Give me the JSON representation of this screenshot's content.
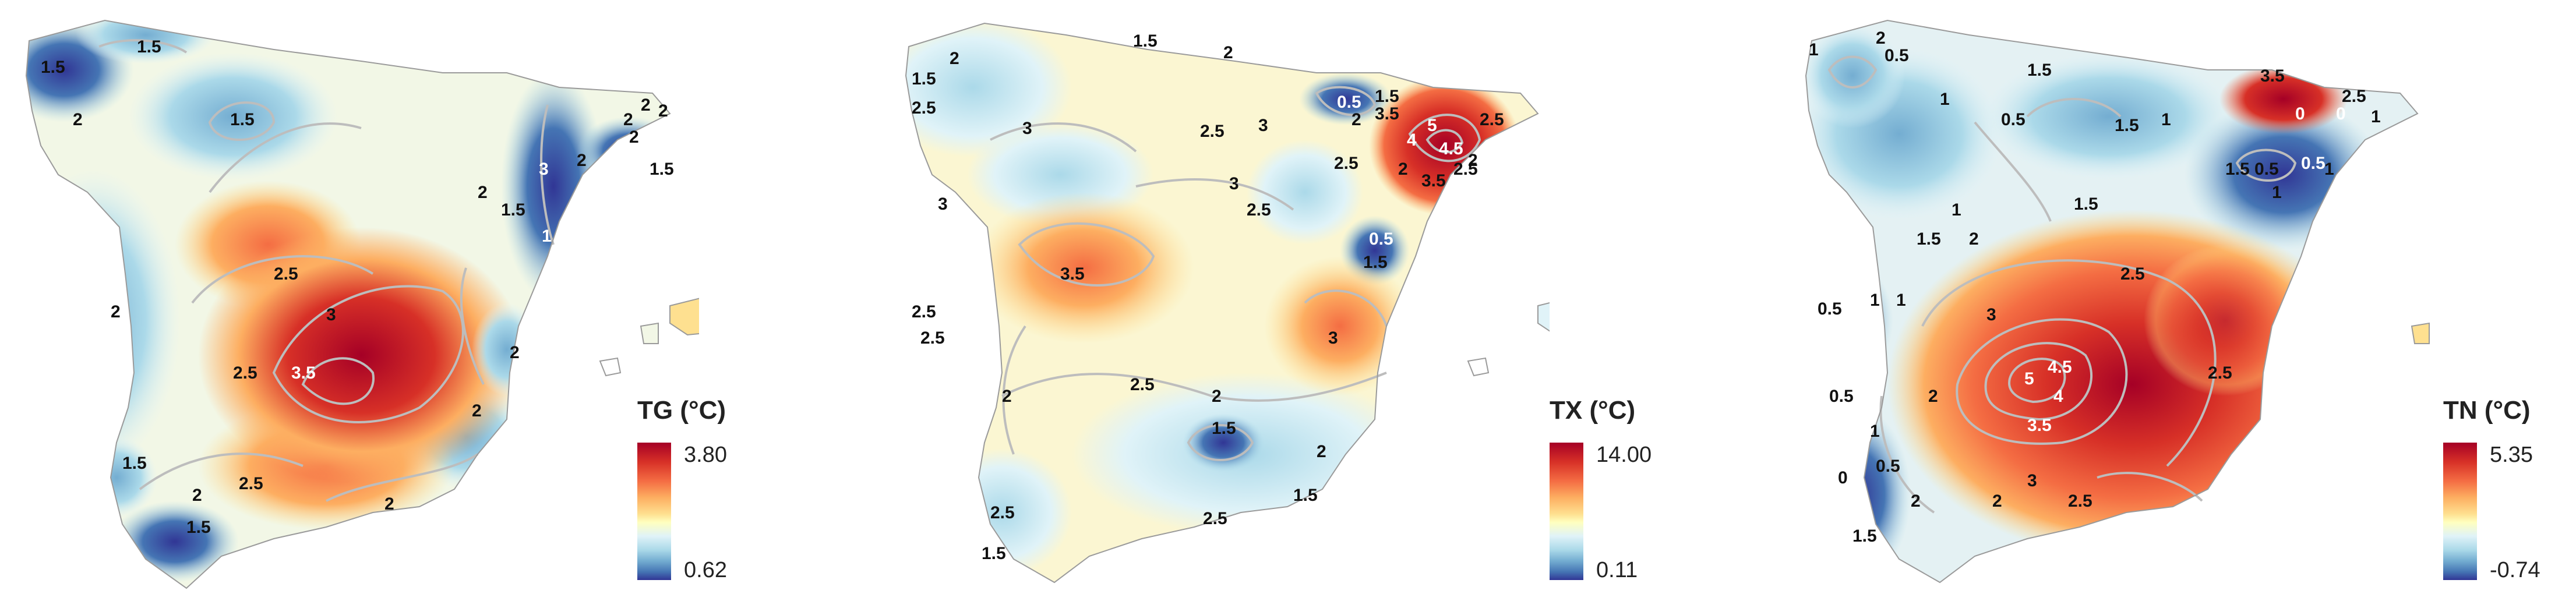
{
  "maps": [
    {
      "variable": "TG",
      "legend": {
        "title": "TG (°C)",
        "max": "3.80",
        "min": "0.62"
      },
      "contour_labels": [
        "1.5",
        "1.5",
        "1.5",
        "2",
        "2",
        "2",
        "2",
        "2",
        "2",
        "1.5",
        "2",
        "3",
        "1.5",
        "1",
        "2.5",
        "3",
        "3.5",
        "2.5",
        "2",
        "2",
        "2",
        "1.5",
        "2.5",
        "1.5",
        "2",
        "2"
      ],
      "colors": {
        "high": "#a50026",
        "mid": "#ffffbf",
        "low": "#313695"
      }
    },
    {
      "variable": "TX",
      "legend": {
        "title": "TX (°C)",
        "max": "14.00",
        "min": "0.11"
      },
      "contour_labels": [
        "1.5",
        "2",
        "1.5",
        "2",
        "2.5",
        "3",
        "2.5",
        "3",
        "1.5",
        "2",
        "0.5",
        "3.5",
        "5",
        "4",
        "4.5",
        "2.5",
        "3.5",
        "2",
        "2.5",
        "2",
        "2.5",
        "3",
        "3",
        "2.5",
        "0.5",
        "1.5",
        "3.5",
        "2.5",
        "2.5",
        "3",
        "2",
        "2.5",
        "2",
        "1.5",
        "2",
        "1.5",
        "2.5",
        "2.5",
        "1.5"
      ],
      "colors": {
        "high": "#a50026",
        "mid": "#ffffbf",
        "low": "#313695"
      }
    },
    {
      "variable": "TN",
      "legend": {
        "title": "TN (°C)",
        "max": "5.35",
        "min": "-0.74"
      },
      "contour_labels": [
        "1",
        "0.5",
        "2",
        "1.5",
        "3.5",
        "2.5",
        "1",
        "0.5",
        "1.5",
        "1",
        "0",
        "0",
        "1",
        "1.5",
        "0.5",
        "1",
        "0.5",
        "1",
        "1.5",
        "1",
        "1.5",
        "2",
        "0.5",
        "1",
        "2.5",
        "1",
        "3",
        "0.5",
        "2",
        "5",
        "4.5",
        "4",
        "3.5",
        "2.5",
        "0.5",
        "1",
        "0.5",
        "2",
        "3",
        "2.5",
        "0",
        "2",
        "1.5"
      ],
      "colors": {
        "high": "#a50026",
        "mid": "#ffffbf",
        "low": "#313695"
      }
    }
  ]
}
